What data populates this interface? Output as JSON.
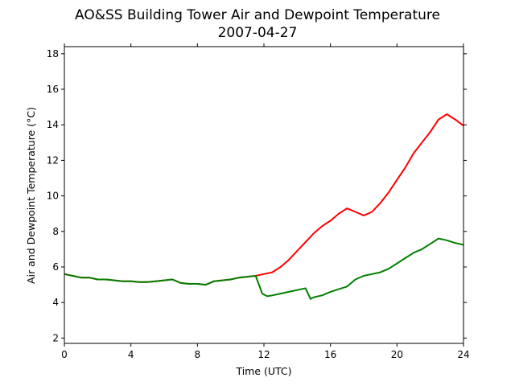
{
  "chart_data": {
    "type": "line",
    "title": "AO&SS Building Tower Air and Dewpoint Temperature",
    "subtitle": "2007-04-27",
    "xlabel": "Time (UTC)",
    "ylabel": "Air and Dewpoint Temperature (°C)",
    "xlim": [
      0,
      24
    ],
    "ylim": [
      1.7,
      18.4
    ],
    "xticks": [
      0,
      4,
      8,
      12,
      16,
      20,
      24
    ],
    "yticks": [
      2,
      4,
      6,
      8,
      10,
      12,
      14,
      16,
      18
    ],
    "grid": false,
    "legend": "none",
    "series": [
      {
        "color": "#ff0000",
        "x": [
          0,
          0.5,
          1,
          1.5,
          2,
          2.5,
          3,
          3.5,
          4,
          4.5,
          5,
          5.5,
          6,
          6.5,
          7,
          7.5,
          8,
          8.5,
          9,
          9.5,
          10,
          10.5,
          11,
          11.5,
          12,
          12.5,
          13,
          13.5,
          14,
          14.5,
          15,
          15.5,
          16,
          16.5,
          17,
          17.5,
          18,
          18.5,
          19,
          19.5,
          20,
          20.5,
          21,
          21.5,
          22,
          22.5,
          23,
          23.5,
          24
        ],
        "y": [
          5.6,
          5.5,
          5.4,
          5.4,
          5.3,
          5.3,
          5.25,
          5.2,
          5.2,
          5.15,
          5.15,
          5.2,
          5.25,
          5.3,
          5.1,
          5.05,
          5.05,
          5.0,
          5.2,
          5.25,
          5.3,
          5.4,
          5.45,
          5.5,
          5.6,
          5.7,
          6.0,
          6.4,
          6.9,
          7.4,
          7.9,
          8.3,
          8.6,
          9.0,
          9.3,
          9.1,
          8.9,
          9.1,
          9.6,
          10.2,
          10.9,
          11.6,
          12.4,
          13.0,
          13.6,
          14.3,
          14.6,
          14.3,
          13.95
        ]
      },
      {
        "color": "#008000",
        "x": [
          0,
          0.5,
          1,
          1.5,
          2,
          2.5,
          3,
          3.5,
          4,
          4.5,
          5,
          5.5,
          6,
          6.5,
          7,
          7.5,
          8,
          8.5,
          9,
          9.5,
          10,
          10.5,
          11,
          11.5,
          11.9,
          12.2,
          12.5,
          13,
          13.5,
          14,
          14.5,
          14.8,
          15,
          15.5,
          16,
          16.5,
          17,
          17.5,
          18,
          18.5,
          19,
          19.5,
          20,
          20.5,
          21,
          21.5,
          22,
          22.5,
          23,
          23.5,
          24
        ],
        "y": [
          5.6,
          5.5,
          5.4,
          5.4,
          5.3,
          5.3,
          5.25,
          5.2,
          5.2,
          5.15,
          5.15,
          5.2,
          5.25,
          5.3,
          5.1,
          5.05,
          5.05,
          5.0,
          5.2,
          5.25,
          5.3,
          5.4,
          5.45,
          5.5,
          4.5,
          4.35,
          4.4,
          4.5,
          4.6,
          4.7,
          4.8,
          4.2,
          4.3,
          4.4,
          4.6,
          4.75,
          4.9,
          5.3,
          5.5,
          5.6,
          5.7,
          5.9,
          6.2,
          6.5,
          6.8,
          7.0,
          7.3,
          7.6,
          7.5,
          7.35,
          7.25
        ]
      }
    ]
  }
}
